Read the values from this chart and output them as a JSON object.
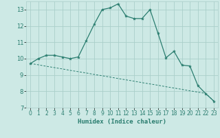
{
  "xlabel": "Humidex (Indice chaleur)",
  "x": [
    0,
    1,
    2,
    3,
    4,
    5,
    6,
    7,
    8,
    9,
    10,
    11,
    12,
    13,
    14,
    15,
    16,
    17,
    18,
    19,
    20,
    21,
    22,
    23
  ],
  "y_main": [
    9.7,
    10.0,
    10.2,
    10.2,
    10.1,
    10.0,
    10.1,
    11.1,
    12.1,
    13.0,
    13.1,
    13.35,
    12.6,
    12.45,
    12.45,
    13.0,
    11.55,
    10.05,
    10.45,
    9.6,
    9.55,
    8.35,
    7.85,
    7.4
  ],
  "y_trend": [
    9.7,
    9.62,
    9.53,
    9.45,
    9.37,
    9.28,
    9.2,
    9.12,
    9.03,
    8.95,
    8.87,
    8.78,
    8.7,
    8.62,
    8.53,
    8.45,
    8.37,
    8.28,
    8.2,
    8.12,
    8.03,
    7.95,
    7.87,
    7.4
  ],
  "line_color": "#2a7d6f",
  "bg_color": "#cde9e5",
  "grid_color": "#aacfca",
  "ylim": [
    7,
    13.5
  ],
  "yticks": [
    7,
    8,
    9,
    10,
    11,
    12,
    13
  ],
  "xlim": [
    -0.5,
    23.5
  ]
}
